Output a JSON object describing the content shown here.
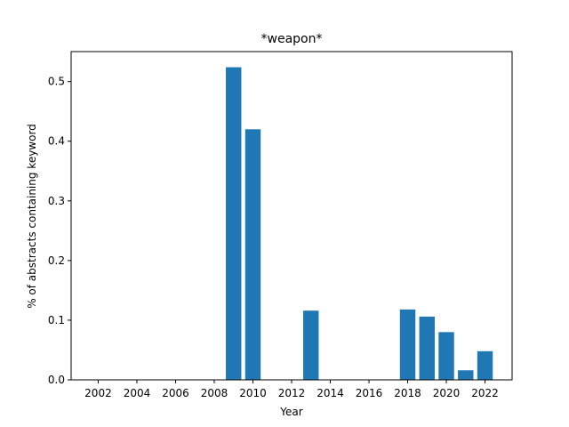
{
  "chart_data": {
    "type": "bar",
    "title": "*weapon*",
    "xlabel": "Year",
    "ylabel": "% of abstracts containing keyword",
    "x": [
      2009,
      2010,
      2013,
      2018,
      2019,
      2020,
      2021,
      2022
    ],
    "values": [
      0.524,
      0.42,
      0.116,
      0.118,
      0.106,
      0.08,
      0.016,
      0.048
    ],
    "xticks": [
      2002,
      2004,
      2006,
      2008,
      2010,
      2012,
      2014,
      2016,
      2018,
      2020,
      2022
    ],
    "xlim": [
      2000.6,
      2023.4
    ],
    "yticks": [
      0.0,
      0.1,
      0.2,
      0.3,
      0.4,
      0.5
    ],
    "ylim": [
      0,
      0.5502
    ],
    "bar_color": "#1f77b4",
    "grid": false,
    "legend": "none"
  }
}
